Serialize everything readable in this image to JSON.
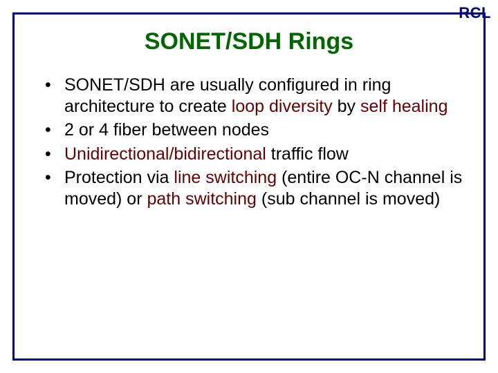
{
  "corner_label": "RCL",
  "title": "SONET/SDH Rings",
  "colors": {
    "border": "#000080",
    "corner_label": "#000080",
    "title": "#006600",
    "body_text": "#000000",
    "term_text": "#660000",
    "background": "#ffffff"
  },
  "bullets": [
    {
      "parts": [
        {
          "text": "SONET/SDH are usually configured in ring architecture to create ",
          "term": false
        },
        {
          "text": "loop diversity",
          "term": true
        },
        {
          "text": " by ",
          "term": false
        },
        {
          "text": "self healing",
          "term": true
        }
      ]
    },
    {
      "parts": [
        {
          "text": "2 or 4 fiber between nodes",
          "term": false
        }
      ]
    },
    {
      "parts": [
        {
          "text": "Unidirectional/bidirectional",
          "term": true
        },
        {
          "text": " traffic flow",
          "term": false
        }
      ]
    },
    {
      "parts": [
        {
          "text": "Protection via ",
          "term": false
        },
        {
          "text": "line switching",
          "term": true
        },
        {
          "text": " (entire OC-N channel is moved) or ",
          "term": false
        },
        {
          "text": "path switching",
          "term": true
        },
        {
          "text": " (sub channel is moved)",
          "term": false
        }
      ]
    }
  ]
}
